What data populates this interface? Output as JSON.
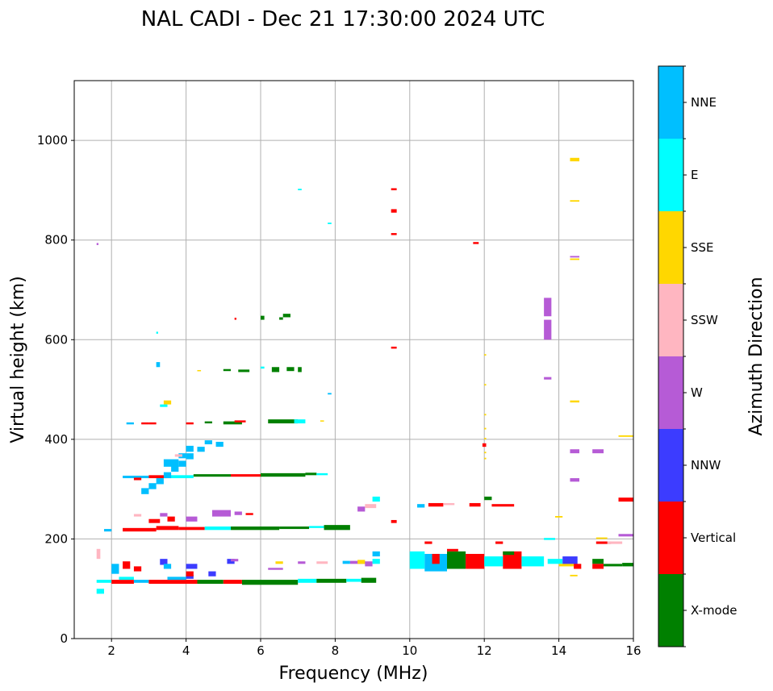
{
  "chart_data": {
    "type": "scatter",
    "title": "NAL CADI - Dec 21 17:30:00 2024 UTC",
    "xlabel": "Frequency (MHz)",
    "ylabel": "Virtual height (km)",
    "xlim": [
      1,
      16
    ],
    "ylim": [
      0,
      1120
    ],
    "xticks": [
      2,
      4,
      6,
      8,
      10,
      12,
      14,
      16
    ],
    "yticks": [
      0,
      200,
      400,
      600,
      800,
      1000
    ],
    "grid": true,
    "colorbar": {
      "label": "Azimuth Direction",
      "categories": [
        "X-mode",
        "Vertical",
        "NNW",
        "W",
        "SSW",
        "SSE",
        "E",
        "NNE"
      ],
      "colors": [
        "#008000",
        "#ff0000",
        "#3c3cff",
        "#b65bd6",
        "#ffb6c1",
        "#ffd700",
        "#00ffff",
        "#00bfff"
      ]
    },
    "segments_format": "[freq_start_MHz, freq_end_MHz, height_start_km, height_end_km, category_index]",
    "segments": [
      [
        1.6,
        2.0,
        112,
        118,
        6
      ],
      [
        2.0,
        2.6,
        110,
        118,
        1
      ],
      [
        2.6,
        3.0,
        112,
        118,
        7
      ],
      [
        3.0,
        4.3,
        110,
        118,
        1
      ],
      [
        4.3,
        5.0,
        110,
        118,
        0
      ],
      [
        5.0,
        5.5,
        110,
        118,
        1
      ],
      [
        5.5,
        7.0,
        108,
        118,
        0
      ],
      [
        7.0,
        7.5,
        112,
        120,
        6
      ],
      [
        7.5,
        8.3,
        112,
        120,
        0
      ],
      [
        8.3,
        8.7,
        114,
        120,
        6
      ],
      [
        8.7,
        9.1,
        112,
        122,
        0
      ],
      [
        3.5,
        4.0,
        118,
        124,
        7
      ],
      [
        2.2,
        2.6,
        118,
        124,
        6
      ],
      [
        4.0,
        4.2,
        120,
        128,
        2
      ],
      [
        1.6,
        1.7,
        160,
        180,
        4
      ],
      [
        1.6,
        1.8,
        90,
        100,
        6
      ],
      [
        2.0,
        2.2,
        130,
        150,
        7
      ],
      [
        2.3,
        2.5,
        140,
        155,
        1
      ],
      [
        2.6,
        2.8,
        135,
        145,
        1
      ],
      [
        3.3,
        3.5,
        148,
        160,
        2
      ],
      [
        3.4,
        3.6,
        140,
        150,
        7
      ],
      [
        4.0,
        4.2,
        125,
        135,
        1
      ],
      [
        4.0,
        4.3,
        140,
        150,
        2
      ],
      [
        4.6,
        4.8,
        125,
        135,
        2
      ],
      [
        5.1,
        5.3,
        150,
        160,
        2
      ],
      [
        5.2,
        5.4,
        155,
        160,
        3
      ],
      [
        6.2,
        6.6,
        138,
        142,
        3
      ],
      [
        6.4,
        6.6,
        150,
        155,
        5
      ],
      [
        7.0,
        7.2,
        150,
        155,
        3
      ],
      [
        7.5,
        7.8,
        150,
        155,
        4
      ],
      [
        8.2,
        8.4,
        150,
        156,
        7
      ],
      [
        8.4,
        8.8,
        150,
        156,
        3
      ],
      [
        8.6,
        8.8,
        150,
        158,
        5
      ],
      [
        8.8,
        9.0,
        145,
        155,
        3
      ],
      [
        9.0,
        9.2,
        165,
        175,
        7
      ],
      [
        9.0,
        9.2,
        150,
        160,
        6
      ],
      [
        1.8,
        2.0,
        215,
        220,
        7
      ],
      [
        2.3,
        3.2,
        215,
        222,
        1
      ],
      [
        3.2,
        3.8,
        218,
        226,
        1
      ],
      [
        3.8,
        4.5,
        218,
        224,
        1
      ],
      [
        4.5,
        5.2,
        218,
        225,
        6
      ],
      [
        5.2,
        6.5,
        218,
        225,
        0
      ],
      [
        6.5,
        7.3,
        220,
        225,
        0
      ],
      [
        7.3,
        7.7,
        222,
        226,
        6
      ],
      [
        7.7,
        8.4,
        218,
        228,
        0
      ],
      [
        3.0,
        3.3,
        232,
        240,
        1
      ],
      [
        3.5,
        3.7,
        235,
        245,
        1
      ],
      [
        4.0,
        4.3,
        235,
        245,
        3
      ],
      [
        4.7,
        5.2,
        245,
        258,
        3
      ],
      [
        5.3,
        5.5,
        248,
        255,
        3
      ],
      [
        5.6,
        5.8,
        248,
        252,
        1
      ],
      [
        2.6,
        2.8,
        245,
        250,
        4
      ],
      [
        3.3,
        3.5,
        245,
        252,
        3
      ],
      [
        2.3,
        3.0,
        322,
        327,
        7
      ],
      [
        2.6,
        2.8,
        318,
        323,
        1
      ],
      [
        3.0,
        3.5,
        322,
        328,
        1
      ],
      [
        3.5,
        4.2,
        322,
        328,
        6
      ],
      [
        4.2,
        5.2,
        325,
        330,
        0
      ],
      [
        5.2,
        6.0,
        325,
        330,
        1
      ],
      [
        6.0,
        7.2,
        325,
        332,
        0
      ],
      [
        7.2,
        7.5,
        328,
        333,
        0
      ],
      [
        7.5,
        7.8,
        328,
        332,
        6
      ],
      [
        2.8,
        3.0,
        290,
        302,
        7
      ],
      [
        3.0,
        3.2,
        300,
        312,
        7
      ],
      [
        3.2,
        3.4,
        310,
        322,
        7
      ],
      [
        3.4,
        3.6,
        322,
        334,
        7
      ],
      [
        3.6,
        3.8,
        335,
        347,
        7
      ],
      [
        3.8,
        4.0,
        345,
        357,
        7
      ],
      [
        4.0,
        4.2,
        360,
        372,
        7
      ],
      [
        4.0,
        4.2,
        375,
        387,
        7
      ],
      [
        3.4,
        3.8,
        345,
        360,
        7
      ],
      [
        3.8,
        4.0,
        362,
        372,
        7
      ],
      [
        4.3,
        4.5,
        375,
        385,
        7
      ],
      [
        4.5,
        4.7,
        390,
        398,
        7
      ],
      [
        4.8,
        5.0,
        385,
        395,
        7
      ],
      [
        3.7,
        3.9,
        365,
        370,
        4
      ],
      [
        2.4,
        2.6,
        430,
        434,
        7
      ],
      [
        2.8,
        3.0,
        430,
        434,
        1
      ],
      [
        3.0,
        3.2,
        430,
        434,
        1
      ],
      [
        4.0,
        4.2,
        430,
        434,
        1
      ],
      [
        4.5,
        4.7,
        432,
        436,
        0
      ],
      [
        5.0,
        5.5,
        430,
        436,
        0
      ],
      [
        5.3,
        5.6,
        434,
        438,
        1
      ],
      [
        6.2,
        7.0,
        432,
        440,
        0
      ],
      [
        6.9,
        7.2,
        432,
        440,
        6
      ],
      [
        7.6,
        7.7,
        436,
        438,
        5
      ],
      [
        3.4,
        3.6,
        470,
        478,
        5
      ],
      [
        3.3,
        3.5,
        465,
        470,
        6
      ],
      [
        7.8,
        7.9,
        490,
        493,
        7
      ],
      [
        3.2,
        3.3,
        545,
        555,
        7
      ],
      [
        4.3,
        4.4,
        537,
        539,
        5
      ],
      [
        5.0,
        5.2,
        537,
        541,
        0
      ],
      [
        5.4,
        5.7,
        535,
        540,
        0
      ],
      [
        6.0,
        6.1,
        542,
        546,
        6
      ],
      [
        6.3,
        6.5,
        535,
        545,
        0
      ],
      [
        6.7,
        6.9,
        537,
        545,
        0
      ],
      [
        7.0,
        7.1,
        535,
        545,
        0
      ],
      [
        5.3,
        5.35,
        640,
        644,
        1
      ],
      [
        6.0,
        6.1,
        640,
        648,
        0
      ],
      [
        6.5,
        6.6,
        640,
        645,
        0
      ],
      [
        6.6,
        6.8,
        645,
        652,
        0
      ],
      [
        7.0,
        7.1,
        900,
        903,
        6
      ],
      [
        7.8,
        7.9,
        832,
        835,
        6
      ],
      [
        1.6,
        1.65,
        790,
        794,
        3
      ],
      [
        3.2,
        3.25,
        612,
        616,
        6
      ],
      [
        9.5,
        9.65,
        900,
        904,
        1
      ],
      [
        9.5,
        9.65,
        855,
        862,
        1
      ],
      [
        9.5,
        9.65,
        810,
        814,
        1
      ],
      [
        9.5,
        9.65,
        582,
        586,
        1
      ],
      [
        11.7,
        11.85,
        792,
        796,
        1
      ],
      [
        9.5,
        9.65,
        232,
        238,
        1
      ],
      [
        14.3,
        14.55,
        958,
        965,
        5
      ],
      [
        14.3,
        14.55,
        877,
        880,
        5
      ],
      [
        14.3,
        14.55,
        765,
        768,
        3
      ],
      [
        14.3,
        14.55,
        760,
        763,
        5
      ],
      [
        13.6,
        13.8,
        600,
        640,
        3
      ],
      [
        13.6,
        13.8,
        647,
        684,
        3
      ],
      [
        13.6,
        13.8,
        520,
        525,
        3
      ],
      [
        14.3,
        14.55,
        474,
        478,
        5
      ],
      [
        14.3,
        14.55,
        372,
        380,
        3
      ],
      [
        14.9,
        15.2,
        372,
        380,
        3
      ],
      [
        14.3,
        14.55,
        315,
        322,
        3
      ],
      [
        15.6,
        16.0,
        405,
        408,
        5
      ],
      [
        12.0,
        12.05,
        568,
        571,
        5
      ],
      [
        12.0,
        12.05,
        508,
        511,
        5
      ],
      [
        12.0,
        12.05,
        448,
        451,
        5
      ],
      [
        12.0,
        12.05,
        420,
        423,
        5
      ],
      [
        12.0,
        12.05,
        400,
        403,
        5
      ],
      [
        11.95,
        12.05,
        385,
        392,
        1
      ],
      [
        12.0,
        12.05,
        372,
        375,
        5
      ],
      [
        12.0,
        12.05,
        360,
        363,
        5
      ],
      [
        8.6,
        8.8,
        255,
        265,
        3
      ],
      [
        8.8,
        9.1,
        262,
        270,
        4
      ],
      [
        9.0,
        9.2,
        275,
        285,
        6
      ],
      [
        10.2,
        10.4,
        263,
        270,
        7
      ],
      [
        10.5,
        10.9,
        265,
        272,
        1
      ],
      [
        10.9,
        11.2,
        268,
        272,
        4
      ],
      [
        11.6,
        11.9,
        265,
        272,
        1
      ],
      [
        12.0,
        12.2,
        278,
        285,
        0
      ],
      [
        12.2,
        12.8,
        265,
        270,
        1
      ],
      [
        13.9,
        14.1,
        243,
        246,
        5
      ],
      [
        13.6,
        13.9,
        198,
        202,
        6
      ],
      [
        15.6,
        16.0,
        275,
        283,
        1
      ],
      [
        15.6,
        16.0,
        205,
        210,
        3
      ],
      [
        10.0,
        10.4,
        140,
        175,
        6
      ],
      [
        10.4,
        11.0,
        135,
        170,
        7
      ],
      [
        10.6,
        10.8,
        150,
        170,
        1
      ],
      [
        11.0,
        11.5,
        140,
        175,
        0
      ],
      [
        11.5,
        12.0,
        140,
        170,
        1
      ],
      [
        12.0,
        12.5,
        145,
        165,
        6
      ],
      [
        12.5,
        13.0,
        140,
        175,
        1
      ],
      [
        13.0,
        13.6,
        145,
        165,
        6
      ],
      [
        12.5,
        12.8,
        168,
        175,
        0
      ],
      [
        13.7,
        14.1,
        150,
        160,
        6
      ],
      [
        14.1,
        14.5,
        148,
        165,
        2
      ],
      [
        14.4,
        14.6,
        140,
        150,
        1
      ],
      [
        14.0,
        14.4,
        145,
        150,
        5
      ],
      [
        14.9,
        15.2,
        150,
        160,
        0
      ],
      [
        14.9,
        15.2,
        140,
        150,
        1
      ],
      [
        15.2,
        15.7,
        145,
        150,
        0
      ],
      [
        15.7,
        16.0,
        145,
        152,
        0
      ],
      [
        14.3,
        14.5,
        125,
        128,
        5
      ],
      [
        15.0,
        15.3,
        200,
        203,
        5
      ],
      [
        15.0,
        15.4,
        190,
        195,
        1
      ],
      [
        15.3,
        15.7,
        190,
        195,
        4
      ],
      [
        11.0,
        11.3,
        175,
        180,
        1
      ],
      [
        10.4,
        10.6,
        190,
        195,
        1
      ],
      [
        12.3,
        12.5,
        190,
        195,
        1
      ]
    ]
  }
}
